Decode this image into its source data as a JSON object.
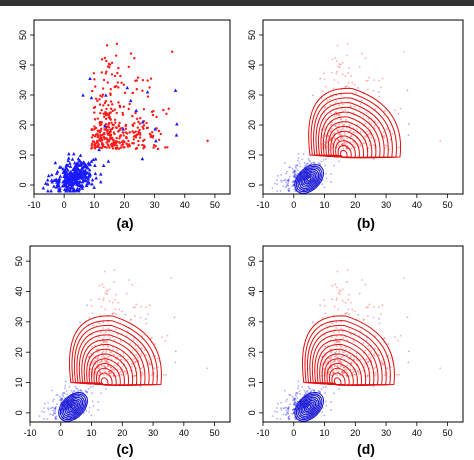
{
  "colors": {
    "class_a": "#1a1aff",
    "class_b": "#ff1a1a",
    "contour_a": "#1010d0",
    "contour_b": "#e01010",
    "axis": "#000000"
  },
  "chart_data": [
    {
      "panel_label": "(a)",
      "type": "scatter",
      "xlim": [
        -10,
        55
      ],
      "ylim": [
        -3,
        55
      ],
      "x_ticks": [
        "-10",
        "0",
        "10",
        "20",
        "30",
        "40",
        "50"
      ],
      "y_ticks": [
        "0",
        "10",
        "20",
        "30",
        "40",
        "50"
      ],
      "grid": false,
      "markers": {
        "class_a": "triangle",
        "class_b": "dot"
      },
      "contours": false,
      "point_style": "solid"
    },
    {
      "panel_label": "(b)",
      "type": "scatter",
      "xlim": [
        -10,
        55
      ],
      "ylim": [
        -3,
        55
      ],
      "x_ticks": [
        "-10",
        "0",
        "10",
        "20",
        "30",
        "40",
        "50"
      ],
      "y_ticks": [
        "0",
        "10",
        "20",
        "30",
        "40",
        "50"
      ],
      "grid": false,
      "contours": true,
      "contour_centers": {
        "class_a": [
          5,
          2
        ],
        "class_b": [
          16,
          10
        ]
      },
      "point_style": "faint"
    },
    {
      "panel_label": "(c)",
      "type": "scatter",
      "xlim": [
        -10,
        55
      ],
      "ylim": [
        -3,
        55
      ],
      "x_ticks": [
        "-10",
        "0",
        "10",
        "20",
        "30",
        "40",
        "50"
      ],
      "y_ticks": [
        "0",
        "10",
        "20",
        "30",
        "40",
        "50"
      ],
      "grid": false,
      "contours": true,
      "contour_centers": {
        "class_a": [
          4,
          2
        ],
        "class_b": [
          14,
          10
        ]
      },
      "point_style": "faint"
    },
    {
      "panel_label": "(d)",
      "type": "scatter",
      "xlim": [
        -10,
        55
      ],
      "ylim": [
        -3,
        55
      ],
      "x_ticks": [
        "-10",
        "0",
        "10",
        "20",
        "30",
        "40",
        "50"
      ],
      "y_ticks": [
        "0",
        "10",
        "20",
        "30",
        "40",
        "50"
      ],
      "grid": false,
      "contours": true,
      "contour_centers": {
        "class_a": [
          5,
          2
        ],
        "class_b": [
          14,
          10
        ]
      },
      "point_style": "faint"
    }
  ]
}
